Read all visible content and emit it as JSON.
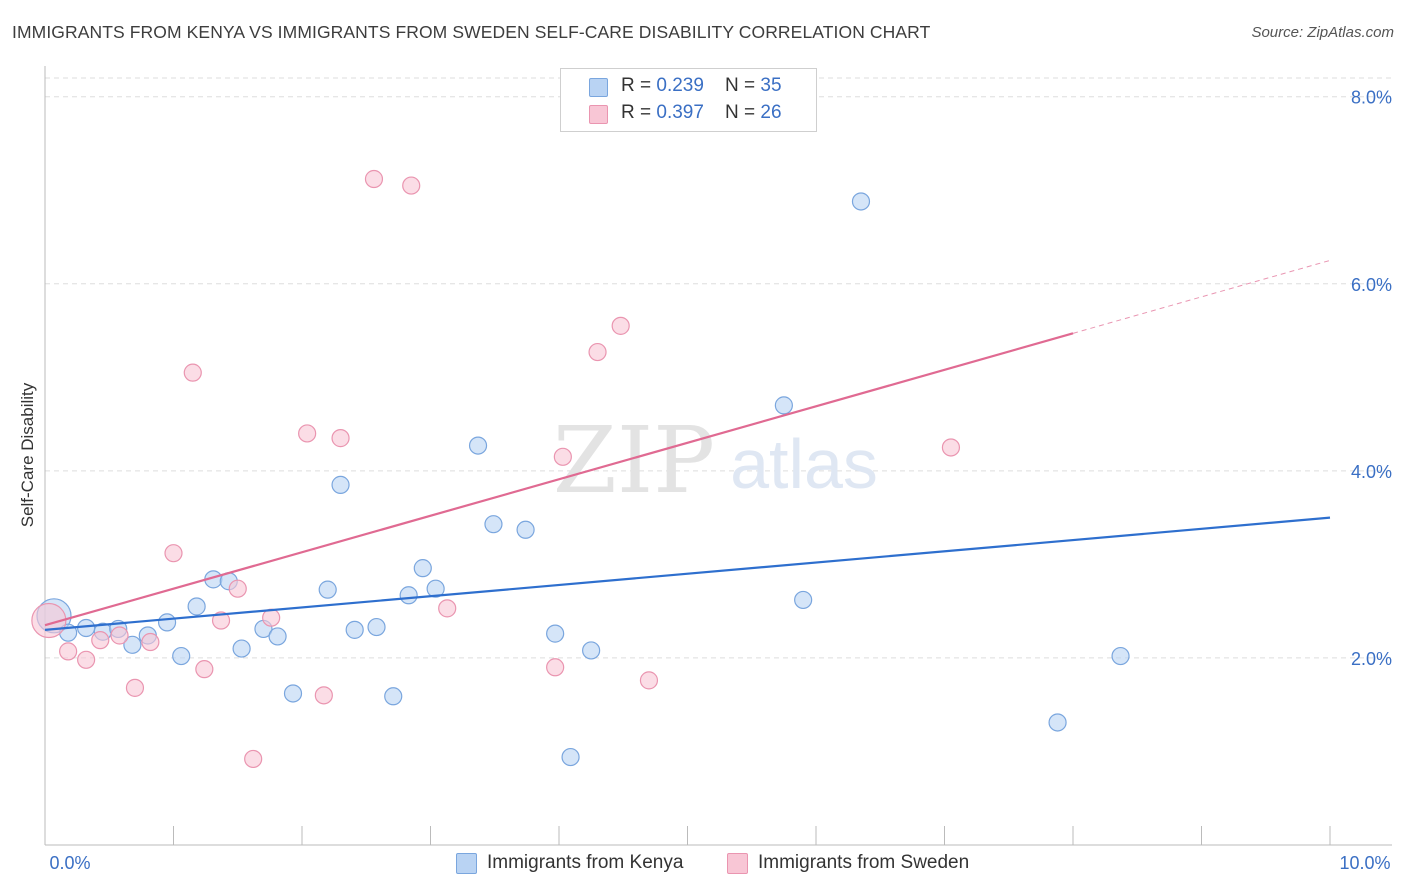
{
  "title": "IMMIGRANTS FROM KENYA VS IMMIGRANTS FROM SWEDEN SELF-CARE DISABILITY CORRELATION CHART",
  "source": "Source: ZipAtlas.com",
  "watermark": {
    "zip": "ZIP",
    "atlas": "atlas"
  },
  "legend": {
    "kenya": {
      "r_label": "R = ",
      "r_value": "0.239",
      "n_label": "N = ",
      "n_value": "35"
    },
    "sweden": {
      "r_label": "R = ",
      "r_value": "0.397",
      "n_label": "N = ",
      "n_value": "26"
    }
  },
  "bottom_legend": {
    "kenya": "Immigrants from Kenya",
    "sweden": "Immigrants from Sweden"
  },
  "colors": {
    "kenya_fill": "#b9d3f3",
    "kenya_stroke": "#7aa6de",
    "kenya_line": "#2e6fce",
    "sweden_fill": "#f8c6d5",
    "sweden_stroke": "#ea95b0",
    "sweden_line": "#e06a92",
    "tick_label": "#3a6fc4",
    "grid": "#dddddd"
  },
  "chart_data": {
    "type": "scatter",
    "title": "IMMIGRANTS FROM KENYA VS IMMIGRANTS FROM SWEDEN SELF-CARE DISABILITY CORRELATION CHART",
    "xlabel": "",
    "ylabel": "Self-Care Disability",
    "xlim": [
      0,
      10
    ],
    "ylim": [
      0,
      8.2
    ],
    "x_ticks": [
      0,
      10
    ],
    "x_tick_labels": [
      "0.0%",
      "10.0%"
    ],
    "y_ticks": [
      2,
      4,
      6,
      8
    ],
    "y_tick_labels": [
      "2.0%",
      "4.0%",
      "6.0%",
      "8.0%"
    ],
    "grid": true,
    "legend_position": "top-center",
    "series": [
      {
        "name": "Immigrants from Kenya",
        "r": 0.239,
        "n": 35,
        "trend": {
          "x": [
            0,
            10
          ],
          "y": [
            2.3,
            3.5
          ],
          "dashed_from": null
        },
        "points": [
          {
            "x": 0.07,
            "y": 2.45,
            "big": true
          },
          {
            "x": 0.18,
            "y": 2.27
          },
          {
            "x": 0.32,
            "y": 2.32
          },
          {
            "x": 0.45,
            "y": 2.28
          },
          {
            "x": 0.57,
            "y": 2.31
          },
          {
            "x": 0.68,
            "y": 2.14
          },
          {
            "x": 0.8,
            "y": 2.24
          },
          {
            "x": 0.95,
            "y": 2.38
          },
          {
            "x": 1.06,
            "y": 2.02
          },
          {
            "x": 1.18,
            "y": 2.55
          },
          {
            "x": 1.31,
            "y": 2.84
          },
          {
            "x": 1.43,
            "y": 2.82
          },
          {
            "x": 1.53,
            "y": 2.1
          },
          {
            "x": 1.7,
            "y": 2.31
          },
          {
            "x": 1.81,
            "y": 2.23
          },
          {
            "x": 1.93,
            "y": 1.62
          },
          {
            "x": 2.2,
            "y": 2.73
          },
          {
            "x": 2.3,
            "y": 3.85
          },
          {
            "x": 2.41,
            "y": 2.3
          },
          {
            "x": 2.58,
            "y": 2.33
          },
          {
            "x": 2.71,
            "y": 1.59
          },
          {
            "x": 2.83,
            "y": 2.67
          },
          {
            "x": 2.94,
            "y": 2.96
          },
          {
            "x": 3.04,
            "y": 2.74
          },
          {
            "x": 3.37,
            "y": 4.27
          },
          {
            "x": 3.49,
            "y": 3.43
          },
          {
            "x": 3.74,
            "y": 3.37
          },
          {
            "x": 3.97,
            "y": 2.26
          },
          {
            "x": 4.09,
            "y": 0.94
          },
          {
            "x": 4.25,
            "y": 2.08
          },
          {
            "x": 5.75,
            "y": 4.7
          },
          {
            "x": 5.9,
            "y": 2.62
          },
          {
            "x": 6.35,
            "y": 6.88
          },
          {
            "x": 7.88,
            "y": 1.31
          },
          {
            "x": 8.37,
            "y": 2.02
          }
        ]
      },
      {
        "name": "Immigrants from Sweden",
        "r": 0.397,
        "n": 26,
        "trend": {
          "x": [
            0,
            10
          ],
          "y": [
            2.35,
            6.25
          ],
          "dashed_from": 8.0
        },
        "points": [
          {
            "x": 0.03,
            "y": 2.4,
            "big": true
          },
          {
            "x": 0.18,
            "y": 2.07
          },
          {
            "x": 0.32,
            "y": 1.98
          },
          {
            "x": 0.43,
            "y": 2.19
          },
          {
            "x": 0.58,
            "y": 2.24
          },
          {
            "x": 0.7,
            "y": 1.68
          },
          {
            "x": 0.82,
            "y": 2.17
          },
          {
            "x": 1.0,
            "y": 3.12
          },
          {
            "x": 1.15,
            "y": 5.05
          },
          {
            "x": 1.24,
            "y": 1.88
          },
          {
            "x": 1.37,
            "y": 2.4
          },
          {
            "x": 1.5,
            "y": 2.74
          },
          {
            "x": 1.62,
            "y": 0.92
          },
          {
            "x": 1.76,
            "y": 2.43
          },
          {
            "x": 2.04,
            "y": 4.4
          },
          {
            "x": 2.17,
            "y": 1.6
          },
          {
            "x": 2.3,
            "y": 4.35
          },
          {
            "x": 2.56,
            "y": 7.12
          },
          {
            "x": 2.85,
            "y": 7.05
          },
          {
            "x": 3.13,
            "y": 2.53
          },
          {
            "x": 3.97,
            "y": 1.9
          },
          {
            "x": 4.03,
            "y": 4.15
          },
          {
            "x": 4.3,
            "y": 5.27
          },
          {
            "x": 4.48,
            "y": 5.55
          },
          {
            "x": 4.7,
            "y": 1.76
          },
          {
            "x": 7.05,
            "y": 4.25
          }
        ]
      }
    ]
  }
}
